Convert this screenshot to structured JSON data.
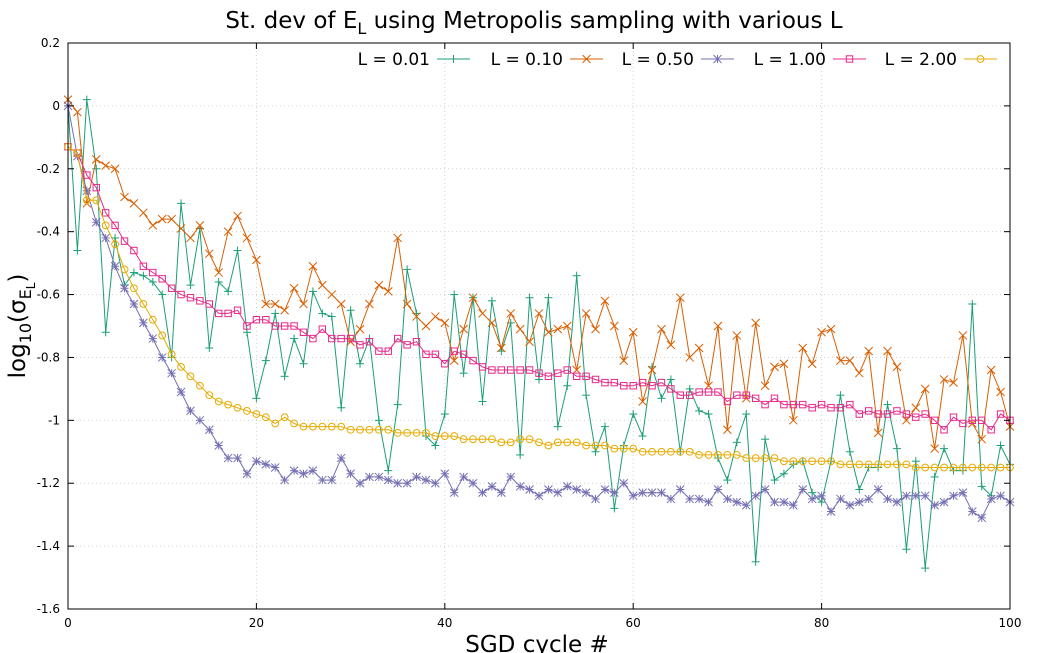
{
  "chart_data": {
    "type": "line",
    "title": {
      "main": "St. dev of E",
      "sub": "L",
      "rest": " using Metropolis sampling with various L"
    },
    "xlabel": "SGD cycle #",
    "ylabel": {
      "base": "log",
      "base_sub": "10",
      "open": "(σ",
      "sigma_sub": "E",
      "sigma_subsub": "L",
      "close": ")"
    },
    "xlim": [
      0,
      100
    ],
    "ylim": [
      -1.6,
      0.2
    ],
    "xticks": [
      0,
      20,
      40,
      60,
      80,
      100
    ],
    "yticks": [
      0.2,
      0,
      -0.2,
      -0.4,
      -0.6,
      -0.8,
      -1,
      -1.2,
      -1.4,
      -1.6
    ],
    "grid": true,
    "legend_position": "top-right",
    "series": [
      {
        "name": "L = 0.01",
        "color": "#1b9e77",
        "marker": "plus",
        "x": [
          0,
          1,
          2,
          3,
          4,
          5,
          6,
          7,
          8,
          9,
          10,
          11,
          12,
          13,
          14,
          15,
          16,
          17,
          18,
          19,
          20,
          21,
          22,
          23,
          24,
          25,
          26,
          27,
          28,
          29,
          30,
          31,
          32,
          33,
          34,
          35,
          36,
          37,
          38,
          39,
          40,
          41,
          42,
          43,
          44,
          45,
          46,
          47,
          48,
          49,
          50,
          51,
          52,
          53,
          54,
          55,
          56,
          57,
          58,
          59,
          60,
          61,
          62,
          63,
          64,
          65,
          66,
          67,
          68,
          69,
          70,
          71,
          72,
          73,
          74,
          75,
          76,
          77,
          78,
          79,
          80,
          81,
          82,
          83,
          84,
          85,
          86,
          87,
          88,
          89,
          90,
          91,
          92,
          93,
          94,
          95,
          96,
          97,
          98,
          99,
          100
        ],
        "values": [
          0,
          -0.46,
          0.02,
          -0.2,
          -0.72,
          -0.42,
          -0.57,
          -0.53,
          -0.54,
          -0.56,
          -0.6,
          -0.8,
          -0.31,
          -0.57,
          -0.39,
          -0.77,
          -0.56,
          -0.59,
          -0.46,
          -0.72,
          -0.93,
          -0.81,
          -0.66,
          -0.86,
          -0.74,
          -0.82,
          -0.59,
          -0.66,
          -0.67,
          -0.96,
          -0.65,
          -0.82,
          -0.74,
          -1.0,
          -1.16,
          -0.95,
          -0.52,
          -0.66,
          -1.05,
          -1.08,
          -0.98,
          -0.6,
          -0.85,
          -0.61,
          -0.94,
          -0.62,
          -0.78,
          -0.69,
          -1.11,
          -0.61,
          -0.87,
          -0.61,
          -1.02,
          -0.89,
          -0.54,
          -0.92,
          -1.1,
          -1.02,
          -1.28,
          -1.08,
          -0.98,
          -1.05,
          -0.83,
          -0.93,
          -0.87,
          -1.1,
          -0.9,
          -0.97,
          -0.98,
          -1.12,
          -1.19,
          -1.07,
          -0.98,
          -1.45,
          -1.06,
          -1.19,
          -1.17,
          -1.14,
          -1.13,
          -1.23,
          -1.26,
          -1.13,
          -0.92,
          -1.1,
          -1.22,
          -1.15,
          -1.15,
          -0.95,
          -1.09,
          -1.41,
          -1.13,
          -1.47,
          -1.18,
          -1.09,
          -1.16,
          -1.16,
          -0.63,
          -1.21,
          -1.24,
          -1.08,
          -1.14
        ]
      },
      {
        "name": "L = 0.10",
        "color": "#d95f02",
        "marker": "cross",
        "x": [
          0,
          1,
          2,
          3,
          4,
          5,
          6,
          7,
          8,
          9,
          10,
          11,
          12,
          13,
          14,
          15,
          16,
          17,
          18,
          19,
          20,
          21,
          22,
          23,
          24,
          25,
          26,
          27,
          28,
          29,
          30,
          31,
          32,
          33,
          34,
          35,
          36,
          37,
          38,
          39,
          40,
          41,
          42,
          43,
          44,
          45,
          46,
          47,
          48,
          49,
          50,
          51,
          52,
          53,
          54,
          55,
          56,
          57,
          58,
          59,
          60,
          61,
          62,
          63,
          64,
          65,
          66,
          67,
          68,
          69,
          70,
          71,
          72,
          73,
          74,
          75,
          76,
          77,
          78,
          79,
          80,
          81,
          82,
          83,
          84,
          85,
          86,
          87,
          88,
          89,
          90,
          91,
          92,
          93,
          94,
          95,
          96,
          97,
          98,
          99,
          100
        ],
        "values": [
          0.02,
          -0.02,
          -0.31,
          -0.17,
          -0.19,
          -0.2,
          -0.29,
          -0.31,
          -0.34,
          -0.38,
          -0.36,
          -0.36,
          -0.39,
          -0.42,
          -0.38,
          -0.47,
          -0.53,
          -0.4,
          -0.35,
          -0.42,
          -0.49,
          -0.63,
          -0.63,
          -0.65,
          -0.58,
          -0.63,
          -0.51,
          -0.57,
          -0.6,
          -0.63,
          -0.75,
          -0.71,
          -0.63,
          -0.57,
          -0.59,
          -0.42,
          -0.63,
          -0.67,
          -0.7,
          -0.67,
          -0.69,
          -0.81,
          -0.71,
          -0.61,
          -0.66,
          -0.69,
          -0.77,
          -0.66,
          -0.71,
          -0.75,
          -0.66,
          -0.72,
          -0.71,
          -0.7,
          -0.84,
          -0.66,
          -0.71,
          -0.62,
          -0.7,
          -0.81,
          -0.72,
          -0.94,
          -0.84,
          -0.71,
          -0.76,
          -0.61,
          -0.8,
          -0.77,
          -0.89,
          -0.7,
          -1.03,
          -0.73,
          -0.93,
          -0.69,
          -0.89,
          -0.83,
          -0.82,
          -1.0,
          -0.77,
          -0.82,
          -0.72,
          -0.71,
          -0.81,
          -0.81,
          -0.85,
          -0.78,
          -1.04,
          -0.78,
          -0.83,
          -1.0,
          -0.96,
          -0.9,
          -1.09,
          -0.87,
          -0.88,
          -0.73,
          -1.01,
          -1.06,
          -0.84,
          -0.91,
          -1.02
        ]
      },
      {
        "name": "L = 0.50",
        "color": "#7570b3",
        "marker": "star",
        "x": [
          0,
          1,
          2,
          3,
          4,
          5,
          6,
          7,
          8,
          9,
          10,
          11,
          12,
          13,
          14,
          15,
          16,
          17,
          18,
          19,
          20,
          21,
          22,
          23,
          24,
          25,
          26,
          27,
          28,
          29,
          30,
          31,
          32,
          33,
          34,
          35,
          36,
          37,
          38,
          39,
          40,
          41,
          42,
          43,
          44,
          45,
          46,
          47,
          48,
          49,
          50,
          51,
          52,
          53,
          54,
          55,
          56,
          57,
          58,
          59,
          60,
          61,
          62,
          63,
          64,
          65,
          66,
          67,
          68,
          69,
          70,
          71,
          72,
          73,
          74,
          75,
          76,
          77,
          78,
          79,
          80,
          81,
          82,
          83,
          84,
          85,
          86,
          87,
          88,
          89,
          90,
          91,
          92,
          93,
          94,
          95,
          96,
          97,
          98,
          99,
          100
        ],
        "values": [
          0,
          -0.16,
          -0.27,
          -0.37,
          -0.42,
          -0.51,
          -0.58,
          -0.63,
          -0.69,
          -0.74,
          -0.8,
          -0.85,
          -0.91,
          -0.97,
          -1.0,
          -1.03,
          -1.08,
          -1.12,
          -1.12,
          -1.17,
          -1.13,
          -1.14,
          -1.15,
          -1.19,
          -1.16,
          -1.17,
          -1.16,
          -1.19,
          -1.19,
          -1.12,
          -1.17,
          -1.2,
          -1.18,
          -1.18,
          -1.19,
          -1.2,
          -1.2,
          -1.18,
          -1.19,
          -1.2,
          -1.17,
          -1.23,
          -1.18,
          -1.2,
          -1.23,
          -1.21,
          -1.23,
          -1.18,
          -1.21,
          -1.22,
          -1.24,
          -1.22,
          -1.23,
          -1.21,
          -1.22,
          -1.23,
          -1.25,
          -1.22,
          -1.23,
          -1.2,
          -1.24,
          -1.23,
          -1.23,
          -1.23,
          -1.25,
          -1.22,
          -1.25,
          -1.25,
          -1.26,
          -1.22,
          -1.25,
          -1.26,
          -1.27,
          -1.24,
          -1.22,
          -1.26,
          -1.26,
          -1.27,
          -1.22,
          -1.25,
          -1.24,
          -1.29,
          -1.25,
          -1.27,
          -1.26,
          -1.25,
          -1.22,
          -1.25,
          -1.26,
          -1.24,
          -1.24,
          -1.24,
          -1.27,
          -1.26,
          -1.24,
          -1.23,
          -1.29,
          -1.31,
          -1.25,
          -1.24,
          -1.26
        ]
      },
      {
        "name": "L = 1.00",
        "color": "#e7298a",
        "marker": "square",
        "x": [
          0,
          1,
          2,
          3,
          4,
          5,
          6,
          7,
          8,
          9,
          10,
          11,
          12,
          13,
          14,
          15,
          16,
          17,
          18,
          19,
          20,
          21,
          22,
          23,
          24,
          25,
          26,
          27,
          28,
          29,
          30,
          31,
          32,
          33,
          34,
          35,
          36,
          37,
          38,
          39,
          40,
          41,
          42,
          43,
          44,
          45,
          46,
          47,
          48,
          49,
          50,
          51,
          52,
          53,
          54,
          55,
          56,
          57,
          58,
          59,
          60,
          61,
          62,
          63,
          64,
          65,
          66,
          67,
          68,
          69,
          70,
          71,
          72,
          73,
          74,
          75,
          76,
          77,
          78,
          79,
          80,
          81,
          82,
          83,
          84,
          85,
          86,
          87,
          88,
          89,
          90,
          91,
          92,
          93,
          94,
          95,
          96,
          97,
          98,
          99,
          100
        ],
        "values": [
          -0.13,
          -0.15,
          -0.22,
          -0.26,
          -0.34,
          -0.38,
          -0.43,
          -0.46,
          -0.51,
          -0.53,
          -0.55,
          -0.58,
          -0.6,
          -0.61,
          -0.62,
          -0.63,
          -0.66,
          -0.66,
          -0.65,
          -0.7,
          -0.68,
          -0.68,
          -0.7,
          -0.7,
          -0.7,
          -0.72,
          -0.74,
          -0.71,
          -0.74,
          -0.74,
          -0.74,
          -0.76,
          -0.75,
          -0.78,
          -0.78,
          -0.74,
          -0.76,
          -0.75,
          -0.79,
          -0.79,
          -0.82,
          -0.78,
          -0.79,
          -0.81,
          -0.83,
          -0.84,
          -0.84,
          -0.84,
          -0.84,
          -0.84,
          -0.85,
          -0.86,
          -0.85,
          -0.84,
          -0.86,
          -0.86,
          -0.87,
          -0.88,
          -0.88,
          -0.89,
          -0.89,
          -0.88,
          -0.89,
          -0.88,
          -0.9,
          -0.92,
          -0.92,
          -0.91,
          -0.91,
          -0.91,
          -0.94,
          -0.92,
          -0.92,
          -0.93,
          -0.95,
          -0.93,
          -0.95,
          -0.95,
          -0.95,
          -0.96,
          -0.95,
          -0.96,
          -0.96,
          -0.95,
          -0.98,
          -0.97,
          -0.98,
          -0.98,
          -0.97,
          -0.98,
          -0.99,
          -0.98,
          -1.0,
          -1.03,
          -0.99,
          -1.01,
          -1.0,
          -1.0,
          -1.03,
          -0.98,
          -1.0
        ]
      },
      {
        "name": "L = 2.00",
        "color": "#e6ab02",
        "marker": "circle",
        "x": [
          0,
          1,
          2,
          3,
          4,
          5,
          6,
          7,
          8,
          9,
          10,
          11,
          12,
          13,
          14,
          15,
          16,
          17,
          18,
          19,
          20,
          21,
          22,
          23,
          24,
          25,
          26,
          27,
          28,
          29,
          30,
          31,
          32,
          33,
          34,
          35,
          36,
          37,
          38,
          39,
          40,
          41,
          42,
          43,
          44,
          45,
          46,
          47,
          48,
          49,
          50,
          51,
          52,
          53,
          54,
          55,
          56,
          57,
          58,
          59,
          60,
          61,
          62,
          63,
          64,
          65,
          66,
          67,
          68,
          69,
          70,
          71,
          72,
          73,
          74,
          75,
          76,
          77,
          78,
          79,
          80,
          81,
          82,
          83,
          84,
          85,
          86,
          87,
          88,
          89,
          90,
          91,
          92,
          93,
          94,
          95,
          96,
          97,
          98,
          99,
          100
        ],
        "values": [
          -0.13,
          -0.15,
          -0.3,
          -0.3,
          -0.38,
          -0.44,
          -0.52,
          -0.58,
          -0.63,
          -0.68,
          -0.73,
          -0.79,
          -0.83,
          -0.86,
          -0.89,
          -0.92,
          -0.94,
          -0.95,
          -0.96,
          -0.97,
          -0.98,
          -0.99,
          -1.01,
          -0.99,
          -1.01,
          -1.02,
          -1.02,
          -1.02,
          -1.02,
          -1.02,
          -1.03,
          -1.03,
          -1.03,
          -1.03,
          -1.03,
          -1.04,
          -1.04,
          -1.04,
          -1.04,
          -1.05,
          -1.05,
          -1.05,
          -1.06,
          -1.06,
          -1.06,
          -1.06,
          -1.07,
          -1.07,
          -1.06,
          -1.06,
          -1.07,
          -1.08,
          -1.07,
          -1.07,
          -1.07,
          -1.08,
          -1.08,
          -1.08,
          -1.09,
          -1.09,
          -1.09,
          -1.1,
          -1.1,
          -1.1,
          -1.1,
          -1.1,
          -1.1,
          -1.11,
          -1.11,
          -1.11,
          -1.11,
          -1.11,
          -1.12,
          -1.12,
          -1.12,
          -1.12,
          -1.13,
          -1.13,
          -1.13,
          -1.13,
          -1.13,
          -1.13,
          -1.14,
          -1.14,
          -1.14,
          -1.14,
          -1.14,
          -1.14,
          -1.14,
          -1.14,
          -1.15,
          -1.15,
          -1.15,
          -1.15,
          -1.15,
          -1.15,
          -1.15,
          -1.15,
          -1.15,
          -1.15,
          -1.15
        ]
      }
    ]
  }
}
